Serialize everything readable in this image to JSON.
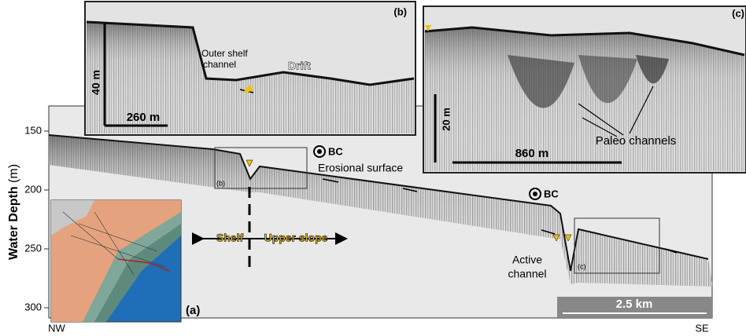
{
  "axis": {
    "label": "Water Depth",
    "unit": "(m)",
    "ticks": [
      150,
      200,
      250,
      300
    ]
  },
  "labels": {
    "panel": "(a)",
    "nw": "NW",
    "se": "SE",
    "shelf": "Shelf",
    "upper_slope": "Upper slope",
    "erosional_surface": "Erosional surface",
    "active_channel": [
      "Active",
      "channel"
    ],
    "bc": [
      "BC",
      "BC"
    ],
    "box_b": "(b)",
    "box_c": "(c)",
    "scale": "2.5 km"
  },
  "panel_b": {
    "label": "(b)",
    "outer_shelf_channel": [
      "Outer shelf",
      "channel"
    ],
    "drift": "Drift",
    "vertical_scale": "40 m",
    "horizontal_scale": "260 m"
  },
  "panel_c": {
    "label": "(c)",
    "vertical_scale": "20 m",
    "horizontal_scale": "860 m",
    "paleo_channels": "Paleo channels"
  }
}
